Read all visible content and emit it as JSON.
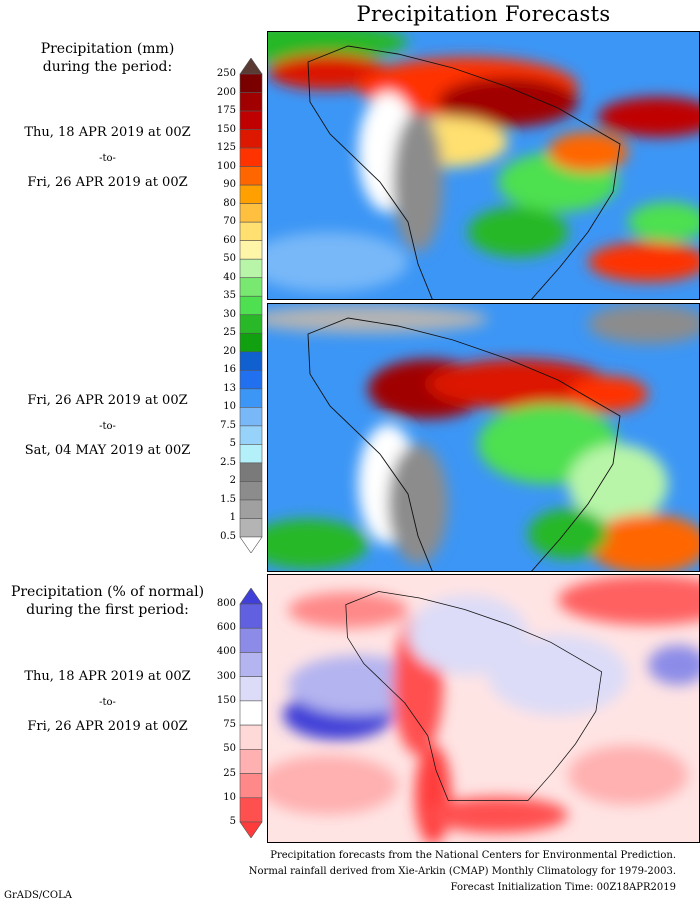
{
  "title": "Precipitation Forecasts",
  "sections": [
    {
      "header": [
        "Precipitation (mm)",
        "during the period:"
      ],
      "start": "Thu, 18 APR 2019 at 00Z",
      "sep": "-to-",
      "end": "Fri, 26 APR 2019 at 00Z"
    },
    {
      "header": [],
      "start": "Fri, 26 APR 2019 at 00Z",
      "sep": "-to-",
      "end": "Sat, 04 MAY 2019 at 00Z"
    },
    {
      "header": [
        "Precipitation (% of normal)",
        "during the first period:"
      ],
      "start": "Thu, 18 APR 2019 at 00Z",
      "sep": "-to-",
      "end": "Fri, 26 APR 2019 at 00Z"
    }
  ],
  "chart_data": [
    {
      "type": "heatmap",
      "title": "Precipitation (mm)",
      "colorbar": {
        "labels": [
          "250",
          "200",
          "175",
          "150",
          "125",
          "100",
          "90",
          "80",
          "70",
          "60",
          "50",
          "40",
          "35",
          "30",
          "25",
          "20",
          "16",
          "13",
          "10",
          "7.5",
          "5",
          "2.5",
          "2",
          "1.5",
          "1",
          "0.5"
        ],
        "colors": [
          "#5a3a32",
          "#7a0000",
          "#a00000",
          "#c00000",
          "#dc1800",
          "#ff3300",
          "#ff6600",
          "#ffa000",
          "#ffc040",
          "#ffe070",
          "#fff5a8",
          "#b8f5a8",
          "#78e870",
          "#4ee050",
          "#28b828",
          "#10a010",
          "#1060d0",
          "#2070f0",
          "#3c96f5",
          "#78b8f8",
          "#96d2fa",
          "#b4f0fa",
          "#7a7a7a",
          "#8c8c8c",
          "#a0a0a0",
          "#b4b4b4",
          "#ffffff"
        ]
      },
      "maps": [
        "Thu, 18 APR 2019 at 00Z to Fri, 26 APR 2019 at 00Z",
        "Fri, 26 APR 2019 at 00Z to Sat, 04 MAY 2019 at 00Z"
      ]
    },
    {
      "type": "heatmap",
      "title": "Precipitation (% of normal)",
      "colorbar": {
        "labels": [
          "800",
          "600",
          "400",
          "300",
          "150",
          "75",
          "50",
          "25",
          "10",
          "5"
        ],
        "colors": [
          "#4040d8",
          "#6060e0",
          "#8c8ce8",
          "#b4b4f0",
          "#dcdcf8",
          "#ffffff",
          "#ffd8d8",
          "#ffb0b0",
          "#ff8888",
          "#ff5050",
          "#ff3c3c"
        ]
      }
    }
  ],
  "footer": [
    "Precipitation forecasts from the National Centers for Environmental Prediction.",
    "Normal rainfall derived from Xie-Arkin (CMAP) Monthly Climatology for 1979-2003.",
    "Forecast Initialization Time: 00Z18APR2019"
  ],
  "credit": "GrADS/COLA"
}
